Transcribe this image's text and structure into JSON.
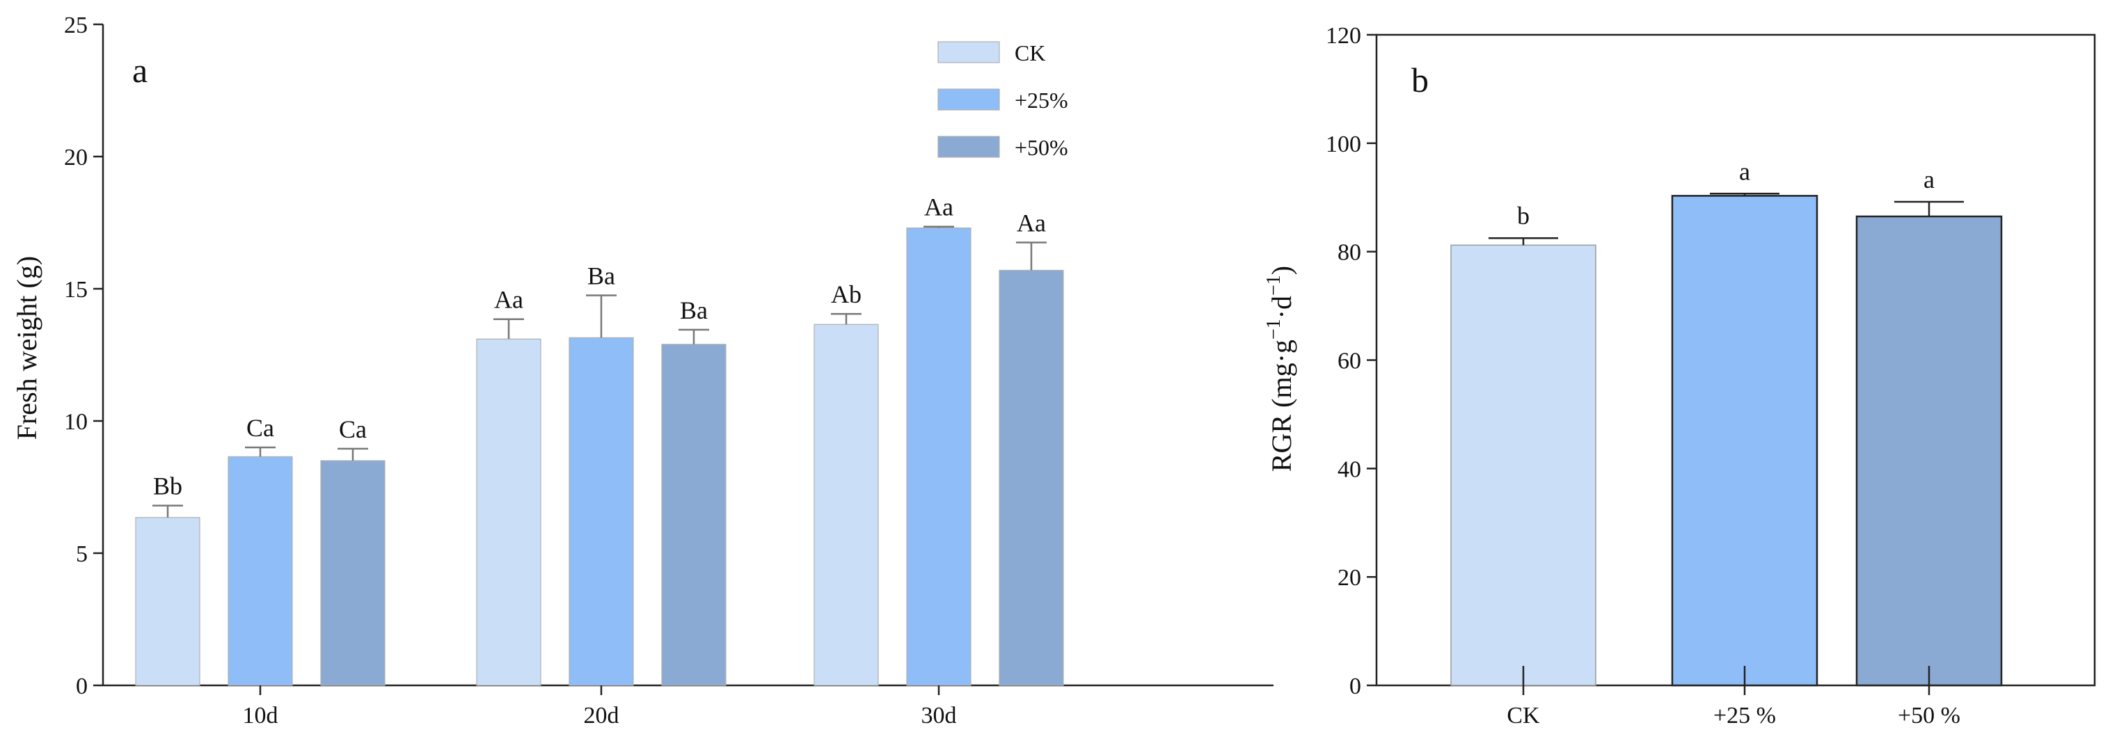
{
  "chart_data": [
    {
      "type": "bar",
      "panel_label": "a",
      "categories": [
        "10d",
        "20d",
        "30d"
      ],
      "ylabel": "Fresh weight (g)",
      "xlabel": "",
      "ylim": [
        0,
        25
      ],
      "yticks": [
        0,
        5,
        10,
        15,
        20,
        25
      ],
      "ytick_labels": [
        "0",
        "5",
        "10",
        "15",
        "20",
        "25"
      ],
      "legend_position": "top-right",
      "series": [
        {
          "name": "CK",
          "color": "#cadef7",
          "values": [
            6.35,
            13.1,
            13.65
          ],
          "errors": [
            0.45,
            0.75,
            0.4
          ],
          "labels": [
            "Bb",
            "Aa",
            "Ab"
          ]
        },
        {
          "name": "+25%",
          "color": "#8fbdf7",
          "values": [
            8.65,
            13.15,
            17.3
          ],
          "errors": [
            0.35,
            1.6,
            0.05
          ],
          "labels": [
            "Ca",
            "Ba",
            "Aa"
          ]
        },
        {
          "name": "+50%",
          "color": "#8aaad3",
          "values": [
            8.5,
            12.9,
            15.7
          ],
          "errors": [
            0.45,
            0.55,
            1.05
          ],
          "labels": [
            "Ca",
            "Ba",
            "Aa"
          ]
        }
      ]
    },
    {
      "type": "bar",
      "panel_label": "b",
      "categories": [
        "CK",
        "+25 %",
        "+50 %"
      ],
      "ylabel_main": "RGR (mg·g",
      "ylabel_sup1": "−1",
      "ylabel_mid": "·d",
      "ylabel_sup2": "−1",
      "ylabel_end": ")",
      "xlabel": "",
      "ylim": [
        0,
        120
      ],
      "yticks": [
        0,
        20,
        40,
        60,
        80,
        100,
        120
      ],
      "ytick_labels": [
        "0",
        "20",
        "40",
        "60",
        "80",
        "100",
        "120"
      ],
      "values": [
        81.2,
        90.3,
        86.5
      ],
      "errors": [
        1.3,
        0.4,
        2.7
      ],
      "labels": [
        "b",
        "a",
        "a"
      ],
      "colors": [
        "#cadef7",
        "#8fbdf7",
        "#8aaad3"
      ]
    }
  ]
}
